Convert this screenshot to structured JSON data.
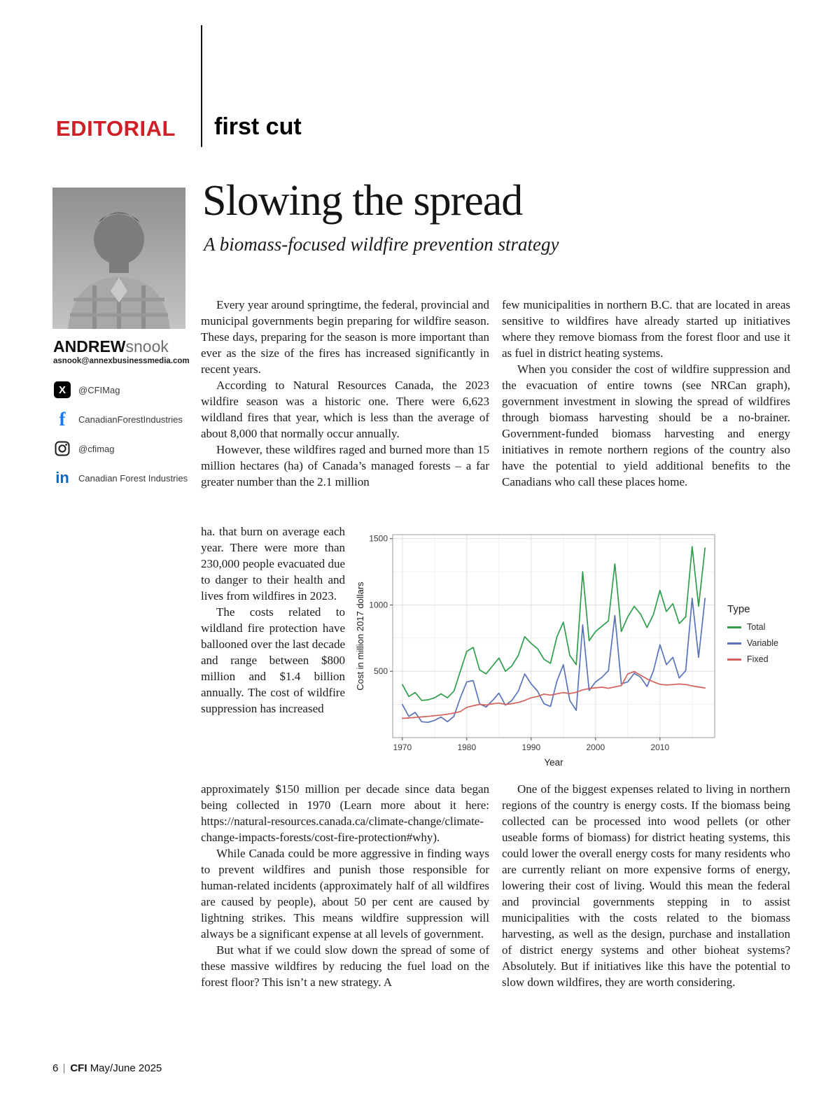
{
  "page": {
    "section_label": "EDITORIAL",
    "column_name": "first cut",
    "footer": {
      "page_number": "6",
      "magazine": "CFI",
      "issue": "May/June 2025"
    }
  },
  "author": {
    "first_name": "ANDREW",
    "last_name": "snook",
    "email": "asnook@annexbusinessmedia.com",
    "social": [
      {
        "icon": "x-twitter-icon",
        "handle": "@CFIMag"
      },
      {
        "icon": "facebook-icon",
        "handle": "CanadianForestIndustries"
      },
      {
        "icon": "instagram-icon",
        "handle": "@cfimag"
      },
      {
        "icon": "linkedin-icon",
        "handle": "Canadian Forest Industries"
      }
    ]
  },
  "article": {
    "title": "Slowing the spread",
    "subtitle": "A biomass-focused wildfire prevention strategy",
    "left_top": [
      "Every year around springtime, the federal, provincial and municipal governments begin preparing for wildfire season. These days, preparing for the season is more important than ever as the size of the fires has increased significantly in recent years.",
      "According to Natural Resources Canada, the 2023 wildfire season was a historic one. There were 6,623 wildland fires that year, which is less than the average of about 8,000 that normally occur annually.",
      "However, these wildfires raged and burned more than 15 million hectares (ha) of Canada’s managed forests – a far greater number than the 2.1 million"
    ],
    "left_beside_chart": [
      "ha. that burn on average each year. There were more than 230,000 people evacuated due to danger to their health and lives from wildfires in 2023.",
      "The costs related to wildland fire protection have ballooned over the last decade and range between $800 million and $1.4 billion annually. The cost of wildfire suppression has increased"
    ],
    "left_bottom": [
      "approximately $150 million per decade since data began being collected in 1970 (Learn more about it here: https://natural-resources.canada.ca/climate-change/climate-change-impacts-forests/cost-fire-protection#why).",
      "While Canada could be more aggressive in finding ways to prevent wildfires and punish those responsible for human-related incidents (approximately half of all wildfires are caused by people), about 50 per cent are caused by lightning strikes. This means wildfire suppression will always be a significant expense at all levels of government.",
      "But what if we could slow down the spread of some of these massive wildfires by reducing the fuel load on the forest floor? This isn’t a new strategy. A"
    ],
    "right_top": [
      "few municipalities in northern B.C. that are located in areas sensitive to wildfires have already started up initiatives where they remove biomass from the forest floor and use it as fuel in district heating systems.",
      "When you consider the cost of wildfire suppression and the evacuation of entire towns (see NRCan graph), government investment in slowing the spread of wildfires through biomass harvesting should be a no-brainer. Government-funded biomass harvesting and energy initiatives in remote northern regions of the country also have the potential to yield additional benefits to the Canadians who call these places home."
    ],
    "right_bottom": [
      "One of the biggest expenses related to living in northern regions of the country is energy costs. If the biomass being collected can be processed into wood pellets (or other useable forms of biomass) for district heating systems, this could lower the overall energy costs for many residents who are currently reliant on more expensive forms of energy, lowering their cost of living. Would this mean the federal and provincial governments stepping in to assist municipalities with the costs related to the biomass harvesting, as well as the design, purchase and installation of district energy systems and other bioheat systems? Absolutely. But if initiatives like this have the potential to slow down wildfires, they are worth considering."
    ]
  },
  "chart_data": {
    "type": "line",
    "title": "",
    "xlabel": "Year",
    "ylabel": "Cost in million 2017 dollars",
    "legend_title": "Type",
    "legend_position": "right",
    "x_range": [
      1968.5,
      2018.5
    ],
    "y_range": [
      0,
      1530
    ],
    "x_ticks": [
      1970,
      1980,
      1990,
      2000,
      2010
    ],
    "y_ticks": [
      500,
      1000,
      1500
    ],
    "x_minor": [
      1975,
      1985,
      1995,
      2005,
      2015
    ],
    "y_minor": [
      250,
      750,
      1250
    ],
    "x": [
      1970,
      1971,
      1972,
      1973,
      1974,
      1975,
      1976,
      1977,
      1978,
      1979,
      1980,
      1981,
      1982,
      1983,
      1984,
      1985,
      1986,
      1987,
      1988,
      1989,
      1990,
      1991,
      1992,
      1993,
      1994,
      1995,
      1996,
      1997,
      1998,
      1999,
      2000,
      2001,
      2002,
      2003,
      2004,
      2005,
      2006,
      2007,
      2008,
      2009,
      2010,
      2011,
      2012,
      2013,
      2014,
      2015,
      2016,
      2017
    ],
    "series": [
      {
        "name": "Total",
        "color": "#2e9e4b",
        "values": [
          400,
          310,
          340,
          280,
          285,
          300,
          330,
          300,
          350,
          500,
          650,
          680,
          510,
          480,
          540,
          600,
          500,
          540,
          620,
          760,
          710,
          670,
          590,
          560,
          760,
          870,
          620,
          550,
          1250,
          730,
          800,
          840,
          880,
          1310,
          800,
          910,
          990,
          930,
          830,
          930,
          1110,
          950,
          1010,
          860,
          910,
          1440,
          990,
          1430
        ]
      },
      {
        "name": "Variable",
        "color": "#5873b8",
        "values": [
          250,
          160,
          190,
          120,
          115,
          130,
          155,
          120,
          160,
          300,
          420,
          430,
          255,
          230,
          280,
          335,
          245,
          280,
          350,
          480,
          405,
          350,
          255,
          235,
          425,
          550,
          280,
          205,
          850,
          355,
          420,
          455,
          505,
          920,
          405,
          420,
          485,
          455,
          385,
          505,
          700,
          550,
          605,
          450,
          505,
          1050,
          605,
          1050
        ]
      },
      {
        "name": "Fixed",
        "color": "#d4605c",
        "values": [
          145,
          148,
          152,
          156,
          160,
          165,
          170,
          176,
          185,
          196,
          228,
          240,
          250,
          246,
          255,
          260,
          250,
          256,
          265,
          280,
          300,
          310,
          328,
          320,
          330,
          340,
          332,
          342,
          360,
          370,
          375,
          380,
          372,
          382,
          392,
          480,
          498,
          470,
          442,
          420,
          402,
          396,
          400,
          404,
          400,
          390,
          382,
          374
        ]
      }
    ]
  }
}
